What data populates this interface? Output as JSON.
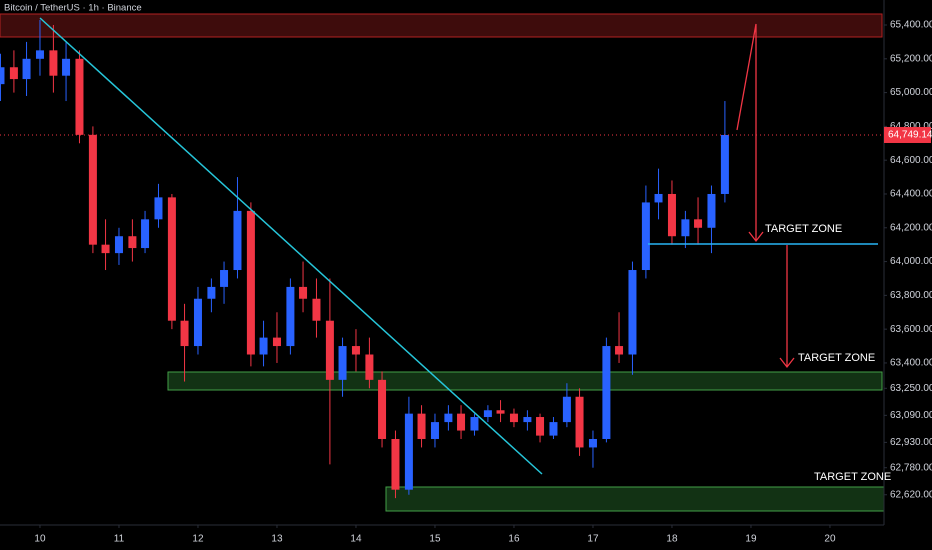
{
  "chart_data": {
    "type": "candlestick",
    "title": "Bitcoin / TetherUS · 1h · Binance",
    "up_color": "#2962ff",
    "down_color": "#f23645",
    "x": [
      9.5,
      9.67,
      9.83,
      10,
      10.17,
      10.33,
      10.5,
      10.67,
      10.83,
      11,
      11.17,
      11.33,
      11.5,
      11.67,
      11.83,
      12,
      12.17,
      12.33,
      12.5,
      12.67,
      12.83,
      13,
      13.17,
      13.33,
      13.5,
      13.67,
      13.83,
      14,
      14.17,
      14.33,
      14.5,
      14.67,
      14.83,
      15,
      15.17,
      15.33,
      15.5,
      15.67,
      15.83,
      16,
      16.17,
      16.33,
      16.5,
      16.67,
      16.83,
      17,
      17.17,
      17.33,
      17.5,
      17.67,
      17.83,
      18,
      18.17,
      18.33,
      18.5,
      18.67
    ],
    "open": [
      65050,
      65150,
      65080,
      65200,
      65250,
      65100,
      65200,
      64750,
      64100,
      64050,
      64150,
      64080,
      64250,
      64380,
      63650,
      63500,
      63780,
      63850,
      63950,
      64300,
      63450,
      63550,
      63500,
      63850,
      63780,
      63650,
      63300,
      63500,
      63450,
      63300,
      62950,
      62650,
      63100,
      62950,
      63050,
      63100,
      63000,
      63080,
      63120,
      63100,
      63050,
      63080,
      62970,
      63050,
      63200,
      62900,
      62950,
      63500,
      63450,
      63950,
      64350,
      64400,
      64150,
      64250,
      64200,
      64400
    ],
    "high": [
      65230,
      65250,
      65300,
      65430,
      65400,
      65300,
      65250,
      64800,
      64250,
      64200,
      64250,
      64300,
      64460,
      64400,
      63750,
      63850,
      63900,
      64000,
      64500,
      64350,
      63650,
      63700,
      63900,
      64000,
      63900,
      63900,
      63550,
      63600,
      63550,
      63350,
      63000,
      63200,
      63150,
      63100,
      63150,
      63150,
      63100,
      63150,
      63180,
      63130,
      63120,
      63100,
      63080,
      63280,
      63250,
      63000,
      63550,
      63700,
      64000,
      64450,
      64550,
      64480,
      64300,
      64380,
      64450,
      64950
    ],
    "low": [
      64950,
      65000,
      64980,
      65100,
      65000,
      64950,
      64700,
      64050,
      63950,
      63980,
      64000,
      64050,
      64200,
      63600,
      63290,
      63450,
      63700,
      63750,
      63900,
      63380,
      63380,
      63400,
      63450,
      63700,
      63550,
      62800,
      63200,
      63350,
      63250,
      62900,
      62600,
      62620,
      62900,
      62900,
      63000,
      62950,
      62970,
      63050,
      63050,
      63020,
      63000,
      62930,
      62950,
      63020,
      62850,
      62780,
      62930,
      63400,
      63330,
      63900,
      64250,
      64100,
      64080,
      64100,
      64050,
      64350
    ],
    "close": [
      65150,
      65080,
      65200,
      65250,
      65100,
      65200,
      64750,
      64100,
      64050,
      64150,
      64080,
      64250,
      64380,
      63650,
      63500,
      63780,
      63850,
      63950,
      64300,
      63450,
      63550,
      63500,
      63850,
      63780,
      63650,
      63300,
      63500,
      63450,
      63300,
      62950,
      62650,
      63100,
      62950,
      63050,
      63100,
      63000,
      63080,
      63120,
      63100,
      63050,
      63080,
      62970,
      63050,
      63200,
      62900,
      62950,
      63500,
      63450,
      63950,
      64350,
      64400,
      64150,
      64250,
      64200,
      64400,
      64749.14
    ],
    "last_price": {
      "value": 64749.14,
      "label": "64,749.14"
    },
    "xlim": [
      9.494,
      20.684
    ],
    "xticks": [
      10,
      11,
      12,
      13,
      14,
      15,
      16,
      17,
      18,
      19,
      20
    ],
    "ylim": [
      62441,
      65548
    ],
    "yticks": [
      {
        "value": 65400,
        "label": "65,400.00"
      },
      {
        "value": 65200,
        "label": "65,200.00"
      },
      {
        "value": 65000,
        "label": "65,000.00"
      },
      {
        "value": 64800,
        "label": "64,800.00"
      },
      {
        "value": 64600,
        "label": "64,600.00"
      },
      {
        "value": 64400,
        "label": "64,400.00"
      },
      {
        "value": 64200,
        "label": "64,200.00"
      },
      {
        "value": 64000,
        "label": "64,000.00"
      },
      {
        "value": 63800,
        "label": "63,800.00"
      },
      {
        "value": 63600,
        "label": "63,600.00"
      },
      {
        "value": 63400,
        "label": "63,400.00"
      },
      {
        "value": 63250,
        "label": "63,250.00"
      },
      {
        "value": 63090,
        "label": "63,090.00"
      },
      {
        "value": 62930,
        "label": "62,930.00"
      },
      {
        "value": 62780,
        "label": "62,780.00"
      },
      {
        "value": 62620,
        "label": "62,620.00"
      }
    ],
    "grid": false,
    "annotations": [
      "TARGET ZONE",
      "TARGET ZONE",
      "TARGET ZONE"
    ]
  }
}
